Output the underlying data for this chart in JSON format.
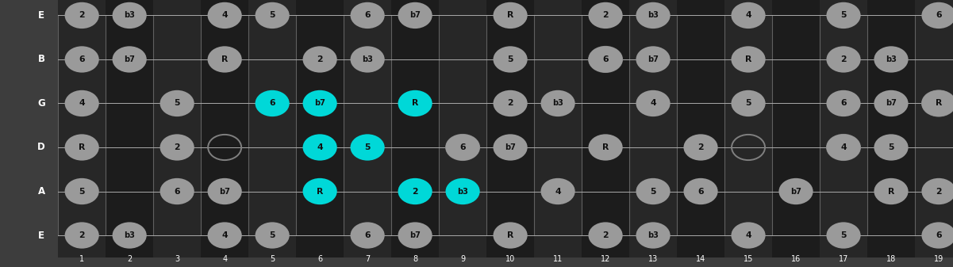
{
  "bg_color": "#3d3d3d",
  "fretboard_dark": "#1c1c1c",
  "fretboard_light": "#242424",
  "dot_gray": "#9a9a9a",
  "dot_cyan": "#00d8d8",
  "dot_text": "#111111",
  "label_color": "#ffffff",
  "fret_line_color": "#606060",
  "string_line_color": "#aaaaaa",
  "n_frets": 19,
  "n_strings": 6,
  "string_names": [
    "E",
    "B",
    "G",
    "D",
    "A",
    "E"
  ],
  "notes": [
    {
      "fret": 1,
      "str": 5,
      "label": "2",
      "hi": false
    },
    {
      "fret": 2,
      "str": 5,
      "label": "b3",
      "hi": false
    },
    {
      "fret": 4,
      "str": 5,
      "label": "4",
      "hi": false
    },
    {
      "fret": 5,
      "str": 5,
      "label": "5",
      "hi": false
    },
    {
      "fret": 7,
      "str": 5,
      "label": "6",
      "hi": false
    },
    {
      "fret": 8,
      "str": 5,
      "label": "b7",
      "hi": false
    },
    {
      "fret": 10,
      "str": 5,
      "label": "R",
      "hi": false
    },
    {
      "fret": 12,
      "str": 5,
      "label": "2",
      "hi": false
    },
    {
      "fret": 13,
      "str": 5,
      "label": "b3",
      "hi": false
    },
    {
      "fret": 15,
      "str": 5,
      "label": "4",
      "hi": false
    },
    {
      "fret": 17,
      "str": 5,
      "label": "5",
      "hi": false
    },
    {
      "fret": 19,
      "str": 5,
      "label": "6",
      "hi": false
    },
    {
      "fret": 1,
      "str": 4,
      "label": "6",
      "hi": false
    },
    {
      "fret": 2,
      "str": 4,
      "label": "b7",
      "hi": false
    },
    {
      "fret": 4,
      "str": 4,
      "label": "R",
      "hi": false
    },
    {
      "fret": 6,
      "str": 4,
      "label": "2",
      "hi": false
    },
    {
      "fret": 7,
      "str": 4,
      "label": "b3",
      "hi": false
    },
    {
      "fret": 10,
      "str": 4,
      "label": "5",
      "hi": false
    },
    {
      "fret": 12,
      "str": 4,
      "label": "6",
      "hi": false
    },
    {
      "fret": 13,
      "str": 4,
      "label": "b7",
      "hi": false
    },
    {
      "fret": 15,
      "str": 4,
      "label": "R",
      "hi": false
    },
    {
      "fret": 17,
      "str": 4,
      "label": "2",
      "hi": false
    },
    {
      "fret": 18,
      "str": 4,
      "label": "b3",
      "hi": false
    },
    {
      "fret": 1,
      "str": 3,
      "label": "4",
      "hi": false
    },
    {
      "fret": 3,
      "str": 3,
      "label": "5",
      "hi": false
    },
    {
      "fret": 5,
      "str": 3,
      "label": "6",
      "hi": true
    },
    {
      "fret": 6,
      "str": 3,
      "label": "b7",
      "hi": true
    },
    {
      "fret": 8,
      "str": 3,
      "label": "R",
      "hi": true
    },
    {
      "fret": 10,
      "str": 3,
      "label": "2",
      "hi": false
    },
    {
      "fret": 11,
      "str": 3,
      "label": "b3",
      "hi": false
    },
    {
      "fret": 13,
      "str": 3,
      "label": "4",
      "hi": false
    },
    {
      "fret": 15,
      "str": 3,
      "label": "5",
      "hi": false
    },
    {
      "fret": 17,
      "str": 3,
      "label": "6",
      "hi": false
    },
    {
      "fret": 18,
      "str": 3,
      "label": "b7",
      "hi": false
    },
    {
      "fret": 19,
      "str": 3,
      "label": "R",
      "hi": false
    },
    {
      "fret": 1,
      "str": 2,
      "label": "R",
      "hi": false
    },
    {
      "fret": 3,
      "str": 2,
      "label": "2",
      "hi": false
    },
    {
      "fret": 6,
      "str": 2,
      "label": "4",
      "hi": true
    },
    {
      "fret": 7,
      "str": 2,
      "label": "5",
      "hi": true
    },
    {
      "fret": 9,
      "str": 2,
      "label": "6",
      "hi": false
    },
    {
      "fret": 10,
      "str": 2,
      "label": "b7",
      "hi": false
    },
    {
      "fret": 12,
      "str": 2,
      "label": "R",
      "hi": false
    },
    {
      "fret": 14,
      "str": 2,
      "label": "2",
      "hi": false
    },
    {
      "fret": 17,
      "str": 2,
      "label": "4",
      "hi": false
    },
    {
      "fret": 18,
      "str": 2,
      "label": "5",
      "hi": false
    },
    {
      "fret": 1,
      "str": 1,
      "label": "5",
      "hi": false
    },
    {
      "fret": 3,
      "str": 1,
      "label": "6",
      "hi": false
    },
    {
      "fret": 4,
      "str": 1,
      "label": "b7",
      "hi": false
    },
    {
      "fret": 6,
      "str": 1,
      "label": "R",
      "hi": true
    },
    {
      "fret": 8,
      "str": 1,
      "label": "2",
      "hi": true
    },
    {
      "fret": 9,
      "str": 1,
      "label": "b3",
      "hi": true
    },
    {
      "fret": 11,
      "str": 1,
      "label": "4",
      "hi": false
    },
    {
      "fret": 13,
      "str": 1,
      "label": "5",
      "hi": false
    },
    {
      "fret": 14,
      "str": 1,
      "label": "6",
      "hi": false
    },
    {
      "fret": 16,
      "str": 1,
      "label": "b7",
      "hi": false
    },
    {
      "fret": 18,
      "str": 1,
      "label": "R",
      "hi": false
    },
    {
      "fret": 19,
      "str": 1,
      "label": "2",
      "hi": false
    },
    {
      "fret": 1,
      "str": 0,
      "label": "2",
      "hi": false
    },
    {
      "fret": 2,
      "str": 0,
      "label": "b3",
      "hi": false
    },
    {
      "fret": 4,
      "str": 0,
      "label": "4",
      "hi": false
    },
    {
      "fret": 5,
      "str": 0,
      "label": "5",
      "hi": false
    },
    {
      "fret": 7,
      "str": 0,
      "label": "6",
      "hi": false
    },
    {
      "fret": 8,
      "str": 0,
      "label": "b7",
      "hi": false
    },
    {
      "fret": 10,
      "str": 0,
      "label": "R",
      "hi": false
    },
    {
      "fret": 12,
      "str": 0,
      "label": "2",
      "hi": false
    },
    {
      "fret": 13,
      "str": 0,
      "label": "b3",
      "hi": false
    },
    {
      "fret": 15,
      "str": 0,
      "label": "4",
      "hi": false
    },
    {
      "fret": 17,
      "str": 0,
      "label": "5",
      "hi": false
    },
    {
      "fret": 19,
      "str": 0,
      "label": "6",
      "hi": false
    }
  ],
  "hollow_rings": [
    {
      "fret": 4,
      "str": 2
    },
    {
      "fret": 9,
      "str": 2
    },
    {
      "fret": 12,
      "str": 4
    },
    {
      "fret": 15,
      "str": 2
    },
    {
      "fret": 17,
      "str": 2
    },
    {
      "fret": 19,
      "str": 3
    }
  ]
}
